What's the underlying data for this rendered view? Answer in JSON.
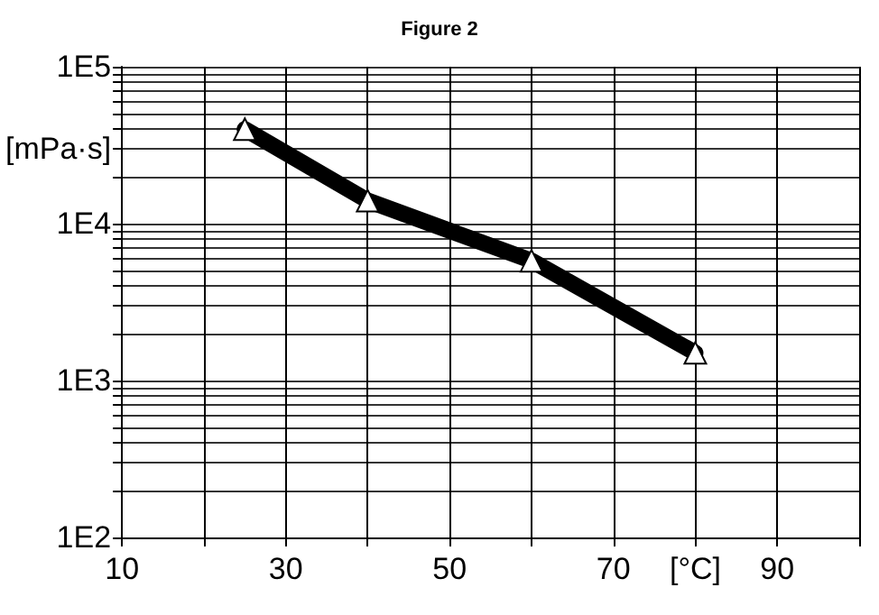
{
  "chart_data": {
    "type": "line",
    "title": "Figure 2",
    "x": [
      25,
      40,
      60,
      80
    ],
    "series": [
      {
        "color": "#000000",
        "values": [
          40000,
          14000,
          5800,
          1500
        ]
      }
    ],
    "marker": "triangle",
    "log": "y",
    "grid": true,
    "xlim": [
      10,
      100
    ],
    "xticks": [
      10,
      {
        "value": 20,
        "label": null
      },
      30,
      {
        "value": 40,
        "label": null
      },
      50,
      {
        "value": 60,
        "label": null
      },
      70,
      {
        "value": 80,
        "label": "[°C]"
      },
      90,
      {
        "value": 100,
        "label": null
      }
    ],
    "ylim": [
      100,
      100000
    ],
    "yticks": [
      {
        "value": 100,
        "label": "1E2"
      },
      {
        "value": 200,
        "label": null
      },
      {
        "value": 300,
        "label": null
      },
      {
        "value": 400,
        "label": null
      },
      {
        "value": 500,
        "label": null
      },
      {
        "value": 600,
        "label": null
      },
      {
        "value": 700,
        "label": null
      },
      {
        "value": 800,
        "label": null
      },
      {
        "value": 900,
        "label": null
      },
      {
        "value": 1000,
        "label": "1E3"
      },
      {
        "value": 2000,
        "label": null
      },
      {
        "value": 3000,
        "label": null
      },
      {
        "value": 4000,
        "label": null
      },
      {
        "value": 5000,
        "label": null
      },
      {
        "value": 6000,
        "label": null
      },
      {
        "value": 7000,
        "label": null
      },
      {
        "value": 8000,
        "label": null
      },
      {
        "value": 9000,
        "label": null
      },
      {
        "value": 10000,
        "label": "1E4"
      },
      {
        "value": 20000,
        "label": null
      },
      {
        "value": 30000,
        "label": "[mPa·s]"
      },
      {
        "value": 40000,
        "label": null
      },
      {
        "value": 50000,
        "label": null
      },
      {
        "value": 60000,
        "label": null
      },
      {
        "value": 70000,
        "label": null
      },
      {
        "value": 80000,
        "label": null
      },
      {
        "value": 90000,
        "label": null
      },
      {
        "value": 100000,
        "label": "1E5"
      }
    ]
  }
}
